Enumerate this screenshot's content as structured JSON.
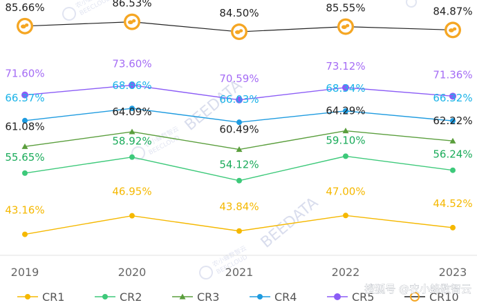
{
  "chart_data": {
    "type": "line",
    "title": "",
    "xlabel": "",
    "ylabel": "",
    "ylim": [
      40,
      90
    ],
    "categories": [
      "2019",
      "2020",
      "2021",
      "2022",
      "2023"
    ],
    "series": [
      {
        "name": "CR1",
        "values": [
          43.16,
          46.95,
          43.84,
          47.0,
          44.52
        ],
        "labels": [
          "43.16%",
          "46.95%",
          "43.84%",
          "47.00%",
          "44.52%"
        ],
        "color": "#f5b800",
        "label_color": "#f5b800",
        "marker": "circle"
      },
      {
        "name": "CR2",
        "values": [
          55.65,
          58.92,
          54.12,
          59.1,
          56.24
        ],
        "labels": [
          "55.65%",
          "58.92%",
          "54.12%",
          "59.10%",
          "56.24%"
        ],
        "color": "#3dc97a",
        "label_color": "#1aab5a",
        "marker": "circle"
      },
      {
        "name": "CR3",
        "values": [
          61.08,
          64.09,
          60.49,
          64.29,
          62.22
        ],
        "labels": [
          "61.08%",
          "64.09%",
          "60.49%",
          "64.29%",
          "62.22%"
        ],
        "color": "#5a9e3c",
        "label_color": "#222222",
        "marker": "triangle"
      },
      {
        "name": "CR4",
        "values": [
          66.37,
          68.86,
          66.03,
          68.34,
          66.32
        ],
        "labels": [
          "66.37%",
          "68.86%",
          "66.03%",
          "68.34%",
          "66.32%"
        ],
        "color": "#1e9be0",
        "label_color": "#1ab3e8",
        "marker": "circle"
      },
      {
        "name": "CR5",
        "values": [
          71.6,
          73.6,
          70.59,
          73.12,
          71.36
        ],
        "labels": [
          "71.60%",
          "73.60%",
          "70.59%",
          "73.12%",
          "71.36%"
        ],
        "color": "#8b5cf6",
        "label_color": "#a56cf5",
        "marker": "circle"
      },
      {
        "name": "CR10",
        "values": [
          85.66,
          86.53,
          84.5,
          85.55,
          84.87
        ],
        "labels": [
          "85.66%",
          "86.53%",
          "84.50%",
          "85.55%",
          "84.87%"
        ],
        "color": "#222222",
        "label_color": "#222222",
        "marker": "coin"
      }
    ],
    "legend": {
      "placement": "bottom",
      "items": [
        "CR1",
        "CR2",
        "CR3",
        "CR4",
        "CR5",
        "CR10"
      ]
    },
    "grid": false
  },
  "watermarks": {
    "brand_cn": "农小蜂数智云",
    "brand_en": "BEECLOUD",
    "brand_data": "BEEDATA",
    "footer": "搜狐号 @农小蜂数智云"
  },
  "icons": {
    "coin": "bee-coin-icon"
  }
}
